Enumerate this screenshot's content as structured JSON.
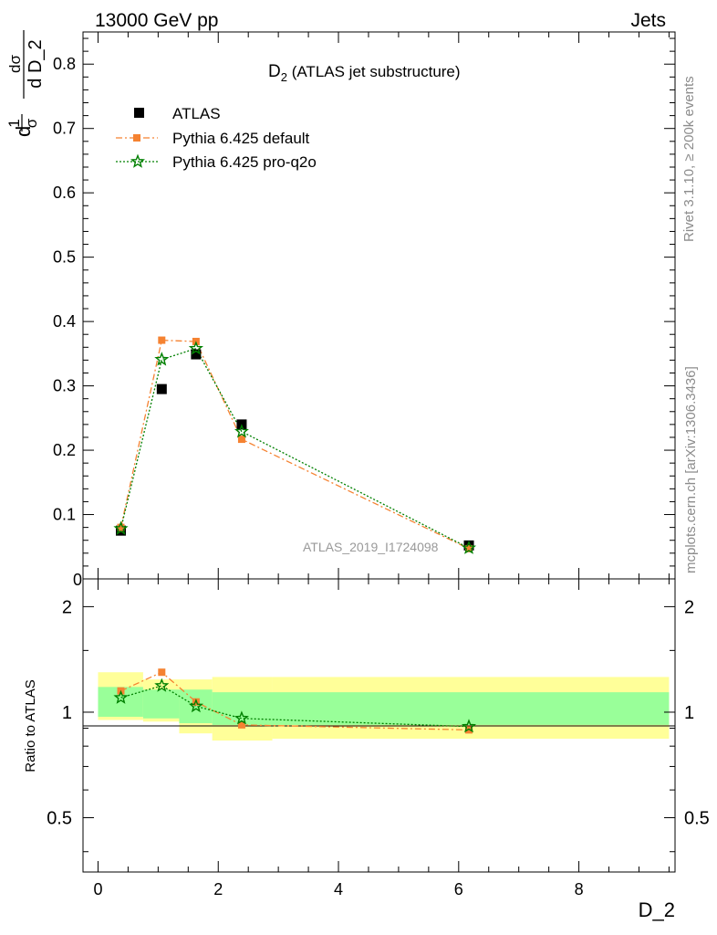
{
  "header": {
    "left": "13000 GeV pp",
    "right": "Jets"
  },
  "side_labels": {
    "rivet": "Rivet 3.1.10, ≥ 200k events",
    "mcplots": "mcplots.cern.ch [arXiv:1306.3436]"
  },
  "watermark": "ATLAS_2019_I1724098",
  "chart_data": [
    {
      "type": "scatter",
      "title_main": "D",
      "title_sub": "2",
      "title_rest": " (ATLAS jet substructure)",
      "ylabel": {
        "d1": "d",
        "one": "1",
        "sigma": "σ",
        "dsig_num": "dσ",
        "dsig_den": "d D_2"
      },
      "ylim": [
        0,
        0.85
      ],
      "xlim": [
        -0.25,
        9.6
      ],
      "yticks": [
        {
          "v": 0.1,
          "label": "0.1"
        },
        {
          "v": 0.2,
          "label": "0.2"
        },
        {
          "v": 0.3,
          "label": "0.3"
        },
        {
          "v": 0.4,
          "label": "0.4"
        },
        {
          "v": 0.5,
          "label": "0.5"
        },
        {
          "v": 0.6,
          "label": "0.6"
        },
        {
          "v": 0.7,
          "label": "0.7"
        },
        {
          "v": 0.8,
          "label": "0.8"
        }
      ],
      "y_zero_label": "0",
      "legend": {
        "position": "top-left",
        "entries": [
          "ATLAS",
          "Pythia 6.425 default",
          "Pythia 6.425 pro-q2o"
        ]
      },
      "series": [
        {
          "name": "ATLAS",
          "color": "#000000",
          "marker": "square",
          "x": [
            0.38,
            1.06,
            1.63,
            2.39,
            6.17
          ],
          "y": [
            0.075,
            0.295,
            0.349,
            0.24,
            0.052
          ]
        },
        {
          "name": "Pythia 6.425 default",
          "color": "#f58231",
          "marker": "square",
          "dash": "dashdot",
          "x": [
            0.38,
            1.06,
            1.63,
            2.39,
            6.17
          ],
          "y": [
            0.08,
            0.371,
            0.369,
            0.217,
            0.047
          ]
        },
        {
          "name": "Pythia 6.425 pro-q2o",
          "color": "#008000",
          "marker": "star",
          "dash": "dotted",
          "x": [
            0.38,
            1.06,
            1.63,
            2.39,
            6.17
          ],
          "y": [
            0.078,
            0.341,
            0.358,
            0.229,
            0.048
          ]
        }
      ]
    },
    {
      "type": "line",
      "ylabel": "Ratio to ATLAS",
      "xlabel": "D_2",
      "log_y": true,
      "ylim": [
        0.35,
        2.4
      ],
      "xlim": [
        -0.25,
        9.6
      ],
      "xticks": [
        {
          "v": 0,
          "label": "0"
        },
        {
          "v": 2,
          "label": "2"
        },
        {
          "v": 4,
          "label": "4"
        },
        {
          "v": 6,
          "label": "6"
        },
        {
          "v": 8,
          "label": "8"
        }
      ],
      "yticks": [
        {
          "v": 0.5,
          "label": "0.5"
        },
        {
          "v": 1,
          "label": "1"
        },
        {
          "v": 2,
          "label": "2"
        }
      ],
      "bands": {
        "yellow": [
          {
            "x0": 0.0,
            "x1": 0.75,
            "lo": 0.95,
            "hi": 1.3
          },
          {
            "x0": 0.75,
            "x1": 1.35,
            "lo": 0.94,
            "hi": 1.24
          },
          {
            "x0": 1.35,
            "x1": 1.9,
            "lo": 0.87,
            "hi": 1.24
          },
          {
            "x0": 1.9,
            "x1": 2.9,
            "lo": 0.83,
            "hi": 1.26
          },
          {
            "x0": 2.9,
            "x1": 9.5,
            "lo": 0.84,
            "hi": 1.26
          }
        ],
        "green": [
          {
            "x0": 0.0,
            "x1": 0.75,
            "lo": 0.97,
            "hi": 1.18
          },
          {
            "x0": 0.75,
            "x1": 1.35,
            "lo": 0.96,
            "hi": 1.16
          },
          {
            "x0": 1.35,
            "x1": 1.9,
            "lo": 0.93,
            "hi": 1.16
          },
          {
            "x0": 1.9,
            "x1": 9.5,
            "lo": 0.92,
            "hi": 1.14
          }
        ]
      },
      "series": [
        {
          "name": "Pythia 6.425 default",
          "color": "#f58231",
          "marker": "square",
          "dash": "dashdot",
          "x": [
            0.38,
            1.06,
            1.63,
            2.39,
            6.17
          ],
          "y": [
            1.15,
            1.3,
            1.07,
            0.92,
            0.89
          ]
        },
        {
          "name": "Pythia 6.425 pro-q2o",
          "color": "#008000",
          "marker": "star",
          "dash": "dotted",
          "x": [
            0.38,
            1.06,
            1.63,
            2.39,
            6.17
          ],
          "y": [
            1.1,
            1.19,
            1.04,
            0.96,
            0.91
          ]
        }
      ]
    }
  ]
}
